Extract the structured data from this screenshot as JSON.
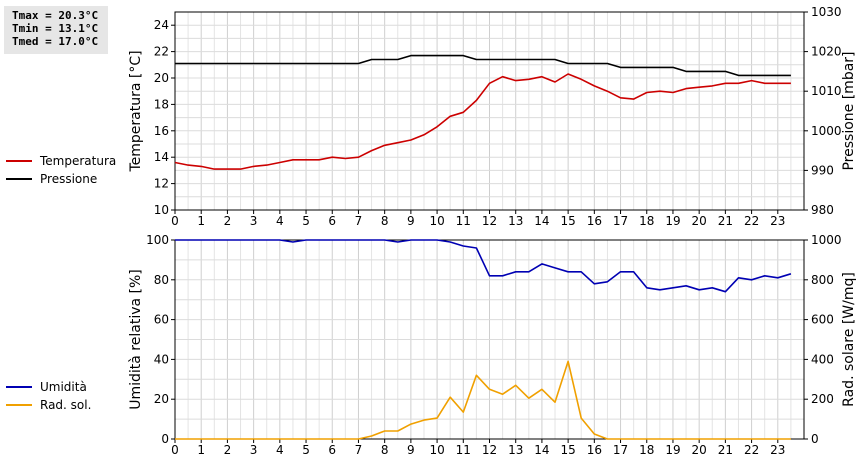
{
  "stats": {
    "tmax": "Tmax = 20.3°C",
    "tmin": "Tmin = 13.1°C",
    "tmed": "Tmed = 17.0°C"
  },
  "legend_top": [
    {
      "label": "Temperatura",
      "color": "#cc0000"
    },
    {
      "label": "Pressione",
      "color": "#000000"
    }
  ],
  "legend_bottom": [
    {
      "label": "Umidità",
      "color": "#0000b3"
    },
    {
      "label": "Rad. sol.",
      "color": "#f0a000"
    }
  ],
  "chart_data": [
    {
      "type": "line",
      "xlim": [
        0,
        24
      ],
      "x_ticks": [
        0,
        1,
        2,
        3,
        4,
        5,
        6,
        7,
        8,
        9,
        10,
        11,
        12,
        13,
        14,
        15,
        16,
        17,
        18,
        19,
        20,
        21,
        22,
        23
      ],
      "ylabel": "Temperatura [°C]",
      "ylim": [
        10,
        25
      ],
      "y_ticks": [
        10,
        12,
        14,
        16,
        18,
        20,
        22,
        24
      ],
      "y2label": "Pressione [mbar]",
      "y2lim": [
        980,
        1030
      ],
      "y2_ticks": [
        980,
        990,
        1000,
        1010,
        1020,
        1030
      ],
      "grid": true,
      "series": [
        {
          "name": "Temperatura",
          "color": "#cc0000",
          "axis": "left",
          "x": [
            0,
            0.5,
            1,
            1.5,
            2,
            2.5,
            3,
            3.5,
            4,
            4.5,
            5,
            5.5,
            6,
            6.5,
            7,
            7.5,
            8,
            8.5,
            9,
            9.5,
            10,
            10.5,
            11,
            11.5,
            12,
            12.5,
            13,
            13.5,
            14,
            14.5,
            15,
            15.5,
            16,
            16.5,
            17,
            17.5,
            18,
            18.5,
            19,
            19.5,
            20,
            20.5,
            21,
            21.5,
            22,
            22.5,
            23,
            23.5
          ],
          "values": [
            13.6,
            13.4,
            13.3,
            13.1,
            13.1,
            13.1,
            13.3,
            13.4,
            13.6,
            13.8,
            13.8,
            13.8,
            14.0,
            13.9,
            14.0,
            14.5,
            14.9,
            15.1,
            15.3,
            15.7,
            16.3,
            17.1,
            17.4,
            18.3,
            19.6,
            20.1,
            19.8,
            19.9,
            20.1,
            19.7,
            20.3,
            19.9,
            19.4,
            19.0,
            18.5,
            18.4,
            18.9,
            19.0,
            18.9,
            19.2,
            19.3,
            19.4,
            19.6,
            19.6,
            19.8,
            19.6,
            19.6,
            19.6
          ]
        },
        {
          "name": "Pressione",
          "color": "#000000",
          "axis": "right",
          "x": [
            0,
            7,
            7.5,
            8.5,
            9,
            11,
            11.5,
            14.5,
            15,
            16.5,
            17,
            19,
            19.5,
            21,
            21.5,
            23.5
          ],
          "values": [
            1017,
            1017,
            1018,
            1018,
            1019,
            1019,
            1018,
            1018,
            1017,
            1017,
            1016,
            1016,
            1015,
            1015,
            1014,
            1014
          ]
        }
      ]
    },
    {
      "type": "line",
      "xlim": [
        0,
        24
      ],
      "x_ticks": [
        0,
        1,
        2,
        3,
        4,
        5,
        6,
        7,
        8,
        9,
        10,
        11,
        12,
        13,
        14,
        15,
        16,
        17,
        18,
        19,
        20,
        21,
        22,
        23
      ],
      "ylabel": "Umidità relativa [%]",
      "ylim": [
        0,
        100
      ],
      "y_ticks": [
        0,
        20,
        40,
        60,
        80,
        100
      ],
      "y2label": "Rad. solare [W/mq]",
      "y2lim": [
        0,
        1000
      ],
      "y2_ticks": [
        0,
        200,
        400,
        600,
        800,
        1000
      ],
      "grid": true,
      "series": [
        {
          "name": "Umidità",
          "color": "#0000b3",
          "axis": "left",
          "x": [
            0,
            4,
            4.5,
            5,
            8,
            8.5,
            9,
            10,
            10.5,
            11,
            11.5,
            12,
            12.5,
            13,
            13.5,
            14,
            14.5,
            15,
            15.5,
            16,
            16.5,
            17,
            17.5,
            18,
            18.5,
            19,
            19.5,
            20,
            20.5,
            21,
            21.5,
            22,
            22.5,
            23,
            23.5
          ],
          "values": [
            100,
            100,
            99,
            100,
            100,
            99,
            100,
            100,
            99,
            97,
            96,
            82,
            82,
            84,
            84,
            88,
            86,
            84,
            84,
            78,
            79,
            84,
            84,
            76,
            75,
            76,
            77,
            75,
            76,
            74,
            81,
            80,
            82,
            81,
            83
          ]
        },
        {
          "name": "Rad. sol.",
          "color": "#f0a000",
          "axis": "right",
          "x": [
            0,
            7,
            7.5,
            8,
            8.5,
            9,
            9.5,
            10,
            10.5,
            11,
            11.5,
            12,
            12.5,
            13,
            13.5,
            14,
            14.5,
            15,
            15.5,
            16,
            16.5,
            23.5
          ],
          "values": [
            0,
            0,
            15,
            40,
            40,
            75,
            95,
            105,
            210,
            135,
            320,
            250,
            225,
            270,
            205,
            250,
            185,
            390,
            105,
            25,
            0,
            0
          ]
        }
      ]
    }
  ]
}
